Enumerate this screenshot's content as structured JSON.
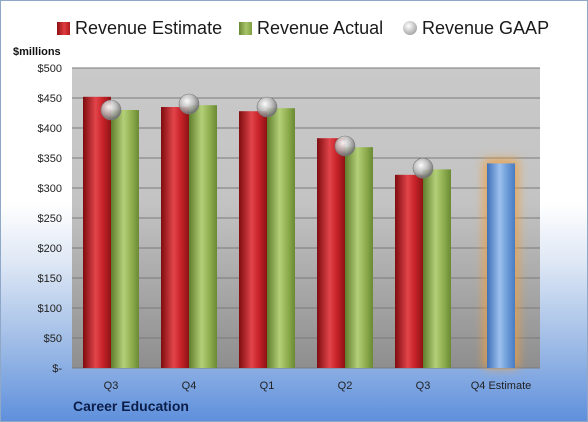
{
  "chart_data": {
    "type": "bar",
    "unit_label": "$millions",
    "categories": [
      "Q3",
      "Q4",
      "Q1",
      "Q2",
      "Q3",
      "Q4 Estimate"
    ],
    "series": [
      {
        "name": "Revenue Estimate",
        "values": [
          452,
          435,
          428,
          383,
          322,
          null
        ],
        "color": "#c8242a"
      },
      {
        "name": "Revenue Actual",
        "values": [
          430,
          438,
          433,
          368,
          331,
          null
        ],
        "color": "#94b354"
      },
      {
        "name": "Revenue GAAP",
        "values": [
          430,
          440,
          435,
          370,
          333,
          null
        ],
        "color": "#b0b0b0"
      }
    ],
    "forecast": {
      "category": "Q4 Estimate",
      "value": 341,
      "color": "#6f9fd8",
      "glow_color": "#f0a040"
    },
    "ylim": [
      0,
      500
    ],
    "yticks": [
      0,
      50,
      100,
      150,
      200,
      250,
      300,
      350,
      400,
      450,
      500
    ],
    "ytick_labels": [
      "$-",
      "$50",
      "$100",
      "$150",
      "$200",
      "$250",
      "$300",
      "$350",
      "$400",
      "$450",
      "$500"
    ],
    "grid": true,
    "legend_position": "top"
  },
  "legend": {
    "estimate": "Revenue Estimate",
    "actual": "Revenue Actual",
    "gaap": "Revenue GAAP"
  },
  "unit_text": "$millions",
  "company": "Career Education"
}
